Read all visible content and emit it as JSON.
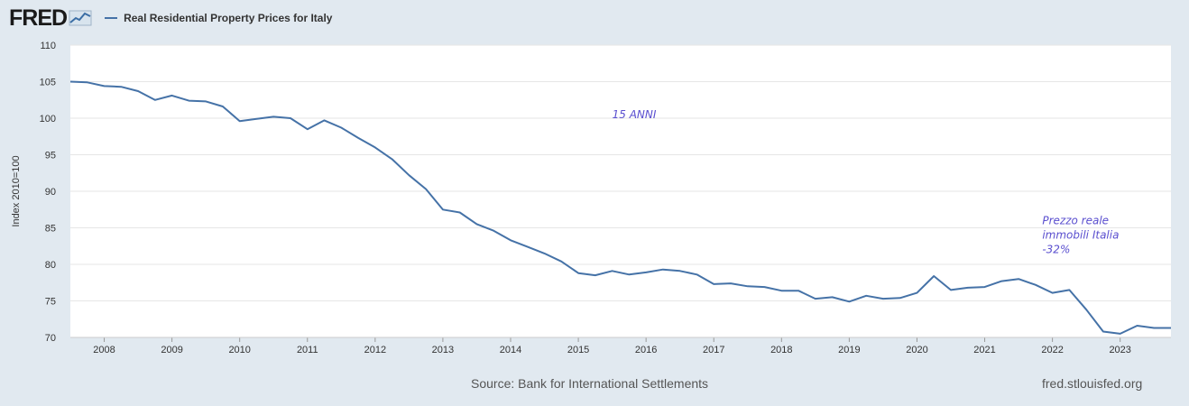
{
  "header": {
    "logo_text": "FRED",
    "series_label": "Real Residential Property Prices for Italy"
  },
  "footer": {
    "source": "Source: Bank for International Settlements",
    "site": "fred.stlouisfed.org"
  },
  "colors": {
    "background": "#e1e9f0",
    "plot_background": "#ffffff",
    "line": "#4572a7",
    "annotation": "#5a4fcf"
  },
  "chart_data": {
    "type": "line",
    "title": "Real Residential Property Prices for Italy",
    "ylabel": "Index 2010=100",
    "xlabel": "",
    "ylim": [
      70,
      110
    ],
    "xlim": [
      2007.5,
      2023.75
    ],
    "yticks": [
      70,
      75,
      80,
      85,
      90,
      95,
      100,
      105,
      110
    ],
    "xticks": [
      2008,
      2009,
      2010,
      2011,
      2012,
      2013,
      2014,
      2015,
      2016,
      2017,
      2018,
      2019,
      2020,
      2021,
      2022,
      2023
    ],
    "grid": "horizontal",
    "series": [
      {
        "name": "Real Residential Property Prices for Italy",
        "x": [
          2007.5,
          2007.75,
          2008.0,
          2008.25,
          2008.5,
          2008.75,
          2009.0,
          2009.25,
          2009.5,
          2009.75,
          2010.0,
          2010.25,
          2010.5,
          2010.75,
          2011.0,
          2011.25,
          2011.5,
          2011.75,
          2012.0,
          2012.25,
          2012.5,
          2012.75,
          2013.0,
          2013.25,
          2013.5,
          2013.75,
          2014.0,
          2014.25,
          2014.5,
          2014.75,
          2015.0,
          2015.25,
          2015.5,
          2015.75,
          2016.0,
          2016.25,
          2016.5,
          2016.75,
          2017.0,
          2017.25,
          2017.5,
          2017.75,
          2018.0,
          2018.25,
          2018.5,
          2018.75,
          2019.0,
          2019.25,
          2019.5,
          2019.75,
          2020.0,
          2020.25,
          2020.5,
          2020.75,
          2021.0,
          2021.25,
          2021.5,
          2021.75,
          2022.0,
          2022.25,
          2022.5,
          2022.75,
          2023.0,
          2023.25,
          2023.5,
          2023.75
        ],
        "y": [
          105.0,
          104.9,
          104.4,
          104.3,
          103.7,
          102.5,
          103.1,
          102.4,
          102.3,
          101.6,
          99.6,
          99.9,
          100.2,
          100.0,
          98.5,
          99.7,
          98.7,
          97.3,
          96.0,
          94.4,
          92.2,
          90.3,
          87.5,
          87.1,
          85.5,
          84.6,
          83.3,
          82.4,
          81.5,
          80.4,
          78.8,
          78.5,
          79.1,
          78.6,
          78.9,
          79.3,
          79.1,
          78.6,
          77.3,
          77.4,
          77.0,
          76.9,
          76.4,
          76.4,
          75.3,
          75.5,
          74.9,
          75.7,
          75.3,
          75.4,
          76.1,
          78.4,
          76.5,
          76.8,
          76.9,
          77.7,
          78.0,
          77.2,
          76.1,
          76.5,
          73.8,
          70.8,
          70.5,
          71.6,
          71.3,
          71.3
        ]
      }
    ],
    "annotations": [
      {
        "lines": [
          "15 ANNI"
        ],
        "x": 2015.5,
        "y": 100.0
      },
      {
        "lines": [
          "Prezzo reale",
          "immobili Italia",
          "-32%"
        ],
        "x": 2021.85,
        "y": 85.5
      }
    ]
  }
}
